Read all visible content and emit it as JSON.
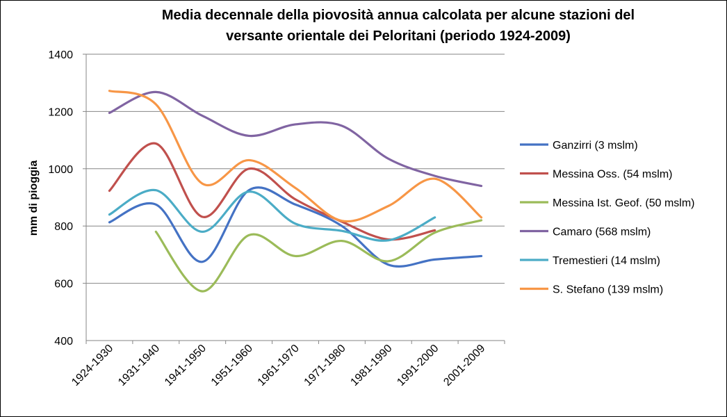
{
  "chart_data": {
    "type": "line",
    "title_lines": [
      "Media decennale della piovosità annua calcolata per alcune stazioni del",
      "versante orientale dei Peloritani (periodo 1924-2009)"
    ],
    "xlabel": "",
    "ylabel": "mm di pioggia",
    "ylim": [
      400,
      1400
    ],
    "yticks": [
      "400",
      "600",
      "800",
      "1000",
      "1200",
      "1400"
    ],
    "grid": true,
    "legend_position": "right",
    "categories": [
      "1924-1930",
      "1931-1940",
      "1941-1950",
      "1951-1960",
      "1961-1970",
      "1971-1980",
      "1981-1990",
      "1991-2000",
      "2001-2009"
    ],
    "series": [
      {
        "name": "Ganzirri (3 mslm)",
        "color": "#4472C4",
        "values": [
          813,
          875,
          675,
          925,
          875,
          800,
          665,
          683,
          695
        ]
      },
      {
        "name": "Messina Oss. (54 mslm)",
        "color": "#C0504D",
        "values": [
          923,
          1088,
          832,
          1000,
          893,
          815,
          753,
          785,
          null
        ]
      },
      {
        "name": "Messina Ist. Geof. (50 mslm)",
        "color": "#9BBB59",
        "values": [
          null,
          780,
          572,
          768,
          695,
          748,
          677,
          777,
          820
        ]
      },
      {
        "name": "Camaro (568 mslm)",
        "color": "#8064A2",
        "values": [
          1195,
          1268,
          1185,
          1115,
          1155,
          1150,
          1035,
          975,
          940
        ]
      },
      {
        "name": "Tremestieri (14 mslm)",
        "color": "#4BACC6",
        "values": [
          840,
          925,
          780,
          920,
          808,
          783,
          750,
          830,
          null
        ]
      },
      {
        "name": "S. Stefano (139 mslm)",
        "color": "#F79646",
        "values": [
          1272,
          1225,
          948,
          1030,
          933,
          818,
          870,
          965,
          830
        ]
      }
    ]
  }
}
